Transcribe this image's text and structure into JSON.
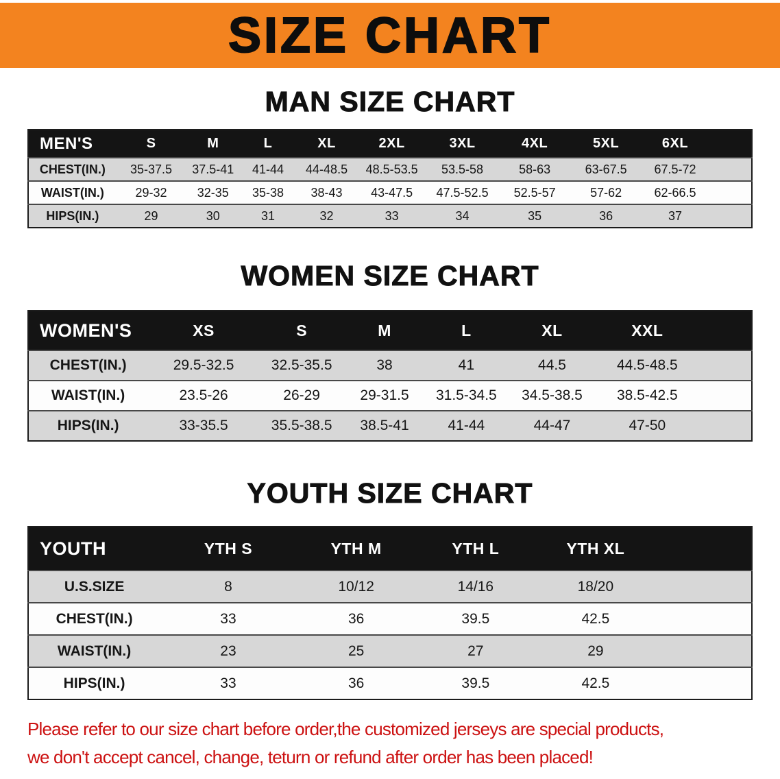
{
  "banner": {
    "title": "SIZE CHART"
  },
  "colors": {
    "banner_orange": "#f3831f",
    "table_header_black": "#141414",
    "row_gray": "#d7d7d7",
    "disclaimer_red": "#cc1111"
  },
  "men": {
    "heading": "MAN SIZE CHART",
    "table": {
      "header": [
        "MEN'S",
        "S",
        "M",
        "L",
        "XL",
        "2XL",
        "3XL",
        "4XL",
        "5XL",
        "6XL"
      ],
      "rows": [
        {
          "label": "CHEST(IN.)",
          "values": [
            "35-37.5",
            "37.5-41",
            "41-44",
            "44-48.5",
            "48.5-53.5",
            "53.5-58",
            "58-63",
            "63-67.5",
            "67.5-72"
          ]
        },
        {
          "label": "WAIST(IN.)",
          "values": [
            "29-32",
            "32-35",
            "35-38",
            "38-43",
            "43-47.5",
            "47.5-52.5",
            "52.5-57",
            "57-62",
            "62-66.5"
          ]
        },
        {
          "label": "HIPS(IN.)",
          "values": [
            "29",
            "30",
            "31",
            "32",
            "33",
            "34",
            "35",
            "36",
            "37"
          ]
        }
      ]
    }
  },
  "women": {
    "heading": "WOMEN SIZE CHART",
    "table": {
      "header": [
        "WOMEN'S",
        "XS",
        "S",
        "M",
        "L",
        "XL",
        "XXL"
      ],
      "rows": [
        {
          "label": "CHEST(IN.)",
          "values": [
            "29.5-32.5",
            "32.5-35.5",
            "38",
            "41",
            "44.5",
            "44.5-48.5"
          ]
        },
        {
          "label": "WAIST(IN.)",
          "values": [
            "23.5-26",
            "26-29",
            "29-31.5",
            "31.5-34.5",
            "34.5-38.5",
            "38.5-42.5"
          ]
        },
        {
          "label": "HIPS(IN.)",
          "values": [
            "33-35.5",
            "35.5-38.5",
            "38.5-41",
            "41-44",
            "44-47",
            "47-50"
          ]
        }
      ]
    }
  },
  "youth": {
    "heading": "YOUTH SIZE CHART",
    "table": {
      "header": [
        "YOUTH",
        "YTH S",
        "YTH M",
        "YTH L",
        "YTH XL"
      ],
      "rows": [
        {
          "label": "U.S.SIZE",
          "values": [
            "8",
            "10/12",
            "14/16",
            "18/20"
          ]
        },
        {
          "label": "CHEST(IN.)",
          "values": [
            "33",
            "36",
            "39.5",
            "42.5"
          ]
        },
        {
          "label": "WAIST(IN.)",
          "values": [
            "23",
            "25",
            "27",
            "29"
          ]
        },
        {
          "label": "HIPS(IN.)",
          "values": [
            "33",
            "36",
            "39.5",
            "42.5"
          ]
        }
      ]
    }
  },
  "disclaimer": {
    "line1": "Please refer to our size chart before order,the customized jerseys are special products,",
    "line2": "we don't accept cancel, change, teturn or refund after order has been placed!"
  }
}
